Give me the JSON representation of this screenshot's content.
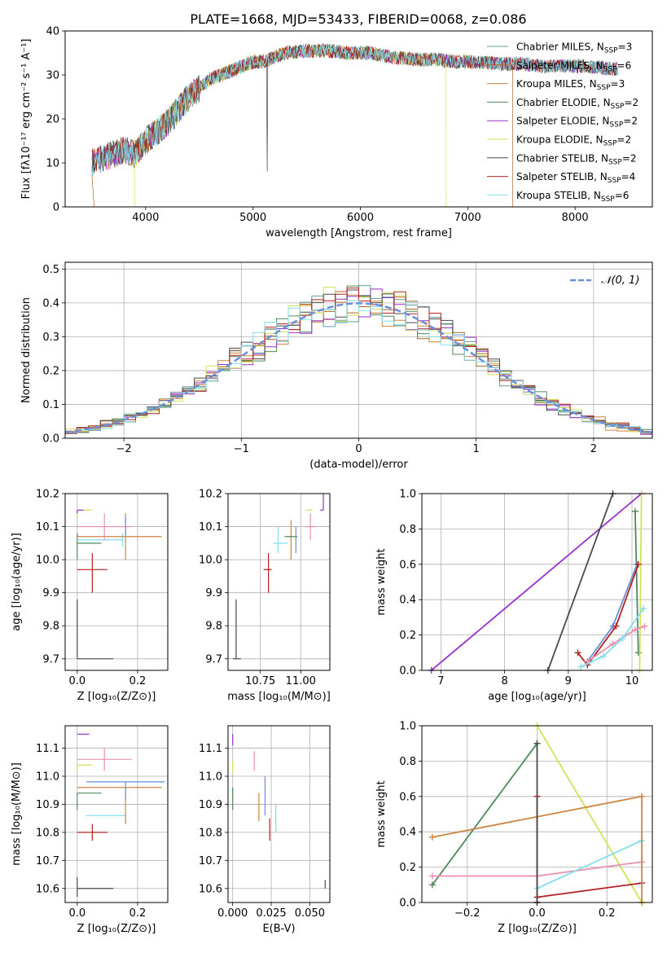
{
  "title": "PLATE=1668, MJD=53433, FIBERID=0068, z=0.086",
  "colors": {
    "Chabrier MILES": "#5f9ea0",
    "Salpeter MILES": "#b5651d",
    "Kroupa MILES": "#cd853f",
    "Chabrier ELODIE": "#4f8a5a",
    "Salpeter ELODIE": "#9932cc",
    "Kroupa ELODIE": "#d4e157",
    "Chabrier STELIB": "#4a4a4a",
    "Salpeter STELIB": "#b22222",
    "Kroupa STELIB": "#80deea",
    "panel3_extra_blue": "#6a8fd8",
    "panel3_extra_pink": "#e88fb0",
    "gaussian": "#6a8fd8"
  },
  "chart_data": [
    {
      "id": "spectrum",
      "type": "line",
      "title": "PLATE=1668, MJD=53433, FIBERID=0068, z=0.086",
      "xlabel": "wavelength [Angstrom, rest frame]",
      "ylabel": "Flux [fλ10⁻¹⁷ erg cm⁻² s⁻¹ A⁻¹]",
      "xlim": [
        3250,
        8720
      ],
      "ylim": [
        0,
        40
      ],
      "xticks": [
        "4000",
        "5000",
        "6000",
        "7000",
        "8000"
      ],
      "yticks": [
        "0",
        "10",
        "20",
        "30",
        "40"
      ],
      "grid": false,
      "legend_position": "top-right",
      "legend": [
        "Chabrier MILES, N_SSP=3",
        "Salpeter MILES, N_SSP=6",
        "Kroupa MILES, N_SSP=3",
        "Chabrier ELODIE, N_SSP=2",
        "Salpeter ELODIE, N_SSP=2",
        "Kroupa ELODIE, N_SSP=2",
        "Chabrier STELIB, N_SSP=2",
        "Salpeter STELIB, N_SSP=4",
        "Kroupa STELIB, N_SSP=6"
      ],
      "continuum": {
        "x": [
          3500,
          3600,
          3700,
          3800,
          3900,
          4000,
          4100,
          4200,
          4300,
          4400,
          4500,
          4600,
          4700,
          4800,
          4900,
          5000,
          5100,
          5200,
          5300,
          5500,
          5700,
          5900,
          6100,
          6300,
          6500,
          6700,
          6900,
          7100,
          7300,
          7500,
          7700,
          7900,
          8100,
          8300,
          8500
        ],
        "y": [
          10,
          11,
          12,
          13,
          12,
          15,
          17,
          19,
          22,
          25,
          27,
          29,
          30,
          31,
          32,
          33,
          33,
          34,
          35,
          35.5,
          35.5,
          35,
          35,
          34,
          33.5,
          33.5,
          33,
          33,
          32.5,
          32.5,
          32,
          32,
          32,
          31.5,
          31
        ]
      },
      "annotations": [
        "dip to 0 near 3520 (Salpeter MILES)",
        "dip to 0 near 3900 (Kroupa ELODIE)",
        "dip to 0 near 6800 (Kroupa ELODIE)",
        "dip to 0 near 7420 (Salpeter MILES)"
      ]
    },
    {
      "id": "residuals",
      "type": "histogram",
      "xlabel": "(data-model)/error",
      "ylabel": "Normed distribution",
      "xlim": [
        -2.5,
        2.5
      ],
      "ylim": [
        0,
        0.52
      ],
      "xticks": [
        "−2",
        "−1",
        "0",
        "1",
        "2"
      ],
      "yticks": [
        "0.0",
        "0.1",
        "0.2",
        "0.3",
        "0.4",
        "0.5"
      ],
      "grid": true,
      "legend_position": "top-right",
      "legend": [
        "𝒩(0, 1)"
      ],
      "bins": 50,
      "peak": 0.42
    },
    {
      "id": "age_vs_metallicity",
      "type": "errorbar",
      "xlabel": "Z [log₁₀(Z/Z⊙)]",
      "ylabel": "age  [log₁₀(age/yr)]",
      "xlim": [
        -0.04,
        0.3
      ],
      "ylim": [
        9.665,
        10.2
      ],
      "xticks": [
        "0.0",
        "0.2"
      ],
      "yticks": [
        "9.7",
        "9.8",
        "9.9",
        "10.0",
        "10.1",
        "10.2"
      ],
      "grid": true,
      "points": [
        {
          "color": "Chabrier STELIB",
          "x": 0.0,
          "y": 9.7,
          "xerr": [
            0.0,
            0.12
          ],
          "yerr": [
            0.0,
            0.18
          ]
        },
        {
          "color": "Salpeter STELIB",
          "x": 0.05,
          "y": 9.97,
          "xerr": [
            0.05,
            0.05
          ],
          "yerr": [
            0.07,
            0.05
          ]
        },
        {
          "color": "Chabrier ELODIE",
          "x": 0.0,
          "y": 10.05,
          "xerr": [
            0.0,
            0.08
          ],
          "yerr": [
            0.05,
            0.03
          ]
        },
        {
          "color": "Kroupa STELIB",
          "x": 0.15,
          "y": 10.06,
          "xerr": [
            0.15,
            0.0
          ],
          "yerr": [
            0.02,
            0.02
          ]
        },
        {
          "color": "Kroupa MILES",
          "x": 0.16,
          "y": 10.07,
          "xerr": [
            0.16,
            0.12
          ],
          "yerr": [
            0.07,
            0.07
          ]
        },
        {
          "color": "panel3_extra_pink",
          "x": 0.09,
          "y": 10.1,
          "xerr": [
            0.09,
            0.09
          ],
          "yerr": [
            0.04,
            0.04
          ]
        },
        {
          "color": "panel3_extra_blue",
          "x": 0.16,
          "y": 10.1,
          "xerr": [
            0.0,
            0.0
          ],
          "yerr": [
            0.03,
            0.03
          ]
        },
        {
          "color": "Kroupa ELODIE",
          "x": 0.0,
          "y": 10.15,
          "xerr": [
            0.0,
            0.05
          ],
          "yerr": [
            0.02,
            0.0
          ]
        },
        {
          "color": "Salpeter ELODIE",
          "x": 0.0,
          "y": 10.15,
          "xerr": [
            0.0,
            0.02
          ],
          "yerr": [
            0.01,
            0.0
          ]
        }
      ]
    },
    {
      "id": "age_vs_mass",
      "type": "errorbar",
      "xlabel": "mass [log₁₀(M/M⊙)]",
      "ylabel": "",
      "xlim": [
        10.55,
        11.18
      ],
      "ylim": [
        9.665,
        10.2
      ],
      "xticks": [
        "10.75",
        "11.00"
      ],
      "yticks": [
        "9.7",
        "9.8",
        "9.9",
        "10.0",
        "10.1",
        "10.2"
      ],
      "grid": true,
      "points": [
        {
          "color": "Chabrier STELIB",
          "x": 10.6,
          "y": 9.7,
          "xerr": [
            0.02,
            0.03
          ],
          "yerr": [
            0.0,
            0.18
          ]
        },
        {
          "color": "Salpeter STELIB",
          "x": 10.8,
          "y": 9.97,
          "xerr": [
            0.03,
            0.02
          ],
          "yerr": [
            0.07,
            0.05
          ]
        },
        {
          "color": "Kroupa STELIB",
          "x": 10.86,
          "y": 10.05,
          "xerr": [
            0.03,
            0.06
          ],
          "yerr": [
            0.03,
            0.05
          ]
        },
        {
          "color": "Kroupa MILES",
          "x": 10.94,
          "y": 10.05,
          "xerr": [
            0.0,
            0.0
          ],
          "yerr": [
            0.05,
            0.07
          ]
        },
        {
          "color": "Chabrier ELODIE",
          "x": 10.94,
          "y": 10.07,
          "xerr": [
            0.04,
            0.04
          ],
          "yerr": [
            0.0,
            0.0
          ]
        },
        {
          "color": "panel3_extra_blue",
          "x": 10.97,
          "y": 10.06,
          "xerr": [
            0.0,
            0.0
          ],
          "yerr": [
            0.04,
            0.04
          ]
        },
        {
          "color": "panel3_extra_pink",
          "x": 11.06,
          "y": 10.1,
          "xerr": [
            0.03,
            0.03
          ],
          "yerr": [
            0.04,
            0.04
          ]
        },
        {
          "color": "Kroupa ELODIE",
          "x": 11.05,
          "y": 10.15,
          "xerr": [
            0.02,
            0.02
          ],
          "yerr": [
            0.0,
            0.0
          ]
        },
        {
          "color": "Salpeter ELODIE",
          "x": 11.14,
          "y": 10.15,
          "xerr": [
            0.02,
            0.0
          ],
          "yerr": [
            0.0,
            0.05
          ]
        }
      ]
    },
    {
      "id": "mass_weight_vs_age",
      "type": "line",
      "xlabel": "age  [log₁₀(age/yr)]",
      "ylabel": "mass weight",
      "xlim": [
        6.7,
        10.32
      ],
      "ylim": [
        0,
        1
      ],
      "xticks": [
        "7",
        "8",
        "9",
        "10"
      ],
      "yticks": [
        "0.0",
        "0.2",
        "0.4",
        "0.6",
        "0.8",
        "1.0"
      ],
      "grid": true,
      "series": [
        {
          "color": "Salpeter ELODIE",
          "x": [
            6.85,
            10.15
          ],
          "y": [
            0.0,
            1.0
          ]
        },
        {
          "color": "Chabrier STELIB",
          "x": [
            8.68,
            9.7
          ],
          "y": [
            0.0,
            1.0
          ]
        },
        {
          "color": "Chabrier ELODIE",
          "x": [
            10.05,
            10.1
          ],
          "y": [
            0.9,
            0.1
          ]
        },
        {
          "color": "Kroupa ELODIE",
          "x": [
            10.12,
            10.15
          ],
          "y": [
            0.0,
            1.0
          ]
        },
        {
          "color": "panel3_extra_blue",
          "x": [
            9.3,
            9.7,
            10.08
          ],
          "y": [
            0.05,
            0.25,
            0.6
          ]
        },
        {
          "color": "Salpeter STELIB",
          "x": [
            9.15,
            9.3,
            9.75,
            10.1
          ],
          "y": [
            0.1,
            0.03,
            0.25,
            0.6
          ]
        },
        {
          "color": "panel3_extra_pink",
          "x": [
            9.3,
            9.7,
            10.05,
            10.2
          ],
          "y": [
            0.05,
            0.15,
            0.23,
            0.25
          ]
        },
        {
          "color": "Kroupa STELIB",
          "x": [
            9.2,
            9.55,
            9.85,
            10.18
          ],
          "y": [
            0.02,
            0.08,
            0.18,
            0.35
          ]
        }
      ]
    },
    {
      "id": "mass_vs_metallicity",
      "type": "errorbar",
      "xlabel": "Z [log₁₀(Z/Z⊙)]",
      "ylabel": "mass [log₁₀(M/M⊙)]",
      "xlim": [
        -0.04,
        0.3
      ],
      "ylim": [
        10.55,
        11.18
      ],
      "xticks": [
        "0.0",
        "0.2"
      ],
      "yticks": [
        "10.6",
        "10.7",
        "10.8",
        "10.9",
        "11.0",
        "11.1"
      ],
      "grid": true,
      "points": [
        {
          "color": "Chabrier STELIB",
          "x": 0.0,
          "y": 10.6,
          "xerr": [
            0.0,
            0.12
          ],
          "yerr": [
            0.03,
            0.04
          ]
        },
        {
          "color": "Salpeter STELIB",
          "x": 0.05,
          "y": 10.8,
          "xerr": [
            0.05,
            0.05
          ],
          "yerr": [
            0.03,
            0.03
          ]
        },
        {
          "color": "Kroupa STELIB",
          "x": 0.16,
          "y": 10.86,
          "xerr": [
            0.13,
            0.0
          ],
          "yerr": [
            0.03,
            0.0
          ]
        },
        {
          "color": "Chabrier ELODIE",
          "x": 0.0,
          "y": 10.94,
          "xerr": [
            0.0,
            0.08
          ],
          "yerr": [
            0.06,
            0.0
          ]
        },
        {
          "color": "Kroupa MILES",
          "x": 0.16,
          "y": 10.96,
          "xerr": [
            0.16,
            0.12
          ],
          "yerr": [
            0.13,
            0.0
          ]
        },
        {
          "color": "panel3_extra_blue",
          "x": 0.16,
          "y": 10.98,
          "xerr": [
            0.13,
            0.13
          ],
          "yerr": [
            0.06,
            0.0
          ]
        },
        {
          "color": "Kroupa ELODIE",
          "x": 0.0,
          "y": 11.04,
          "xerr": [
            0.0,
            0.05
          ],
          "yerr": [
            0.02,
            0.0
          ]
        },
        {
          "color": "panel3_extra_pink",
          "x": 0.09,
          "y": 11.06,
          "xerr": [
            0.09,
            0.09
          ],
          "yerr": [
            0.04,
            0.04
          ]
        },
        {
          "color": "Salpeter ELODIE",
          "x": 0.0,
          "y": 11.15,
          "xerr": [
            0.0,
            0.04
          ],
          "yerr": [
            0.0,
            0.0
          ]
        }
      ]
    },
    {
      "id": "mass_vs_ebv",
      "type": "errorbar",
      "xlabel": "E(B-V)",
      "ylabel": "",
      "xlim": [
        -0.003,
        0.063
      ],
      "ylim": [
        10.55,
        11.18
      ],
      "xticks": [
        "0.000",
        "0.025",
        "0.050"
      ],
      "yticks": [
        "10.6",
        "10.7",
        "10.8",
        "10.9",
        "11.0",
        "11.1"
      ],
      "grid": true,
      "points": [
        {
          "color": "Chabrier STELIB",
          "x": 0.06,
          "y": 10.6,
          "xerr": [
            0.0,
            0.0
          ],
          "yerr": [
            0.0,
            0.03
          ]
        },
        {
          "color": "Salpeter STELIB",
          "x": 0.024,
          "y": 10.8,
          "xerr": [
            0.0,
            0.0
          ],
          "yerr": [
            0.03,
            0.05
          ]
        },
        {
          "color": "Kroupa STELIB",
          "x": 0.028,
          "y": 10.85,
          "xerr": [
            0.0,
            0.0
          ],
          "yerr": [
            0.05,
            0.05
          ]
        },
        {
          "color": "Kroupa MILES",
          "x": 0.017,
          "y": 10.94,
          "xerr": [
            0.0,
            0.0
          ],
          "yerr": [
            0.1,
            0.0
          ]
        },
        {
          "color": "Chabrier ELODIE",
          "x": 0.0,
          "y": 10.92,
          "xerr": [
            0.0,
            0.0
          ],
          "yerr": [
            0.04,
            0.04
          ]
        },
        {
          "color": "panel3_extra_blue",
          "x": 0.021,
          "y": 10.93,
          "xerr": [
            0.0,
            0.0
          ],
          "yerr": [
            0.07,
            0.07
          ]
        },
        {
          "color": "Kroupa ELODIE",
          "x": 0.0,
          "y": 11.03,
          "xerr": [
            0.0,
            0.0
          ],
          "yerr": [
            0.02,
            0.02
          ]
        },
        {
          "color": "panel3_extra_pink",
          "x": 0.014,
          "y": 11.06,
          "xerr": [
            0.0,
            0.0
          ],
          "yerr": [
            0.04,
            0.03
          ]
        },
        {
          "color": "Salpeter ELODIE",
          "x": 0.0,
          "y": 11.13,
          "xerr": [
            0.0,
            0.0
          ],
          "yerr": [
            0.02,
            0.02
          ]
        }
      ]
    },
    {
      "id": "mass_weight_vs_metallicity",
      "type": "line",
      "xlabel": "Z [log₁₀(Z/Z⊙)]",
      "ylabel": "mass weight",
      "xlim": [
        -0.33,
        0.33
      ],
      "ylim": [
        0,
        1
      ],
      "xticks": [
        "−0.2",
        "0.0",
        "0.2"
      ],
      "yticks": [
        "0.0",
        "0.2",
        "0.4",
        "0.6",
        "0.8",
        "1.0"
      ],
      "grid": true,
      "series": [
        {
          "color": "Chabrier ELODIE",
          "x": [
            -0.3,
            0.0
          ],
          "y": [
            0.1,
            0.9
          ]
        },
        {
          "color": "Kroupa ELODIE",
          "x": [
            0.0,
            0.3
          ],
          "y": [
            1.0,
            0.0
          ]
        },
        {
          "color": "Kroupa MILES",
          "x": [
            -0.3,
            0.3
          ],
          "y": [
            0.37,
            0.6
          ]
        },
        {
          "color": "Salpeter STELIB",
          "x": [
            0.0,
            0.3
          ],
          "y": [
            0.03,
            0.11
          ]
        },
        {
          "color": "panel3_extra_pink",
          "x": [
            -0.3,
            0.0,
            0.3
          ],
          "y": [
            0.15,
            0.15,
            0.23
          ]
        },
        {
          "color": "Kroupa STELIB",
          "x": [
            0.0,
            0.3
          ],
          "y": [
            0.08,
            0.35
          ]
        },
        {
          "color": "Salpeter STELIB",
          "x": [
            0.0,
            0.0
          ],
          "y": [
            0.0,
            0.6
          ]
        },
        {
          "color": "Chabrier STELIB",
          "x": [
            0.0,
            0.0
          ],
          "y": [
            0.0,
            0.9
          ]
        },
        {
          "color": "Kroupa MILES",
          "x": [
            0.3,
            0.3
          ],
          "y": [
            0.0,
            0.6
          ]
        }
      ]
    }
  ]
}
